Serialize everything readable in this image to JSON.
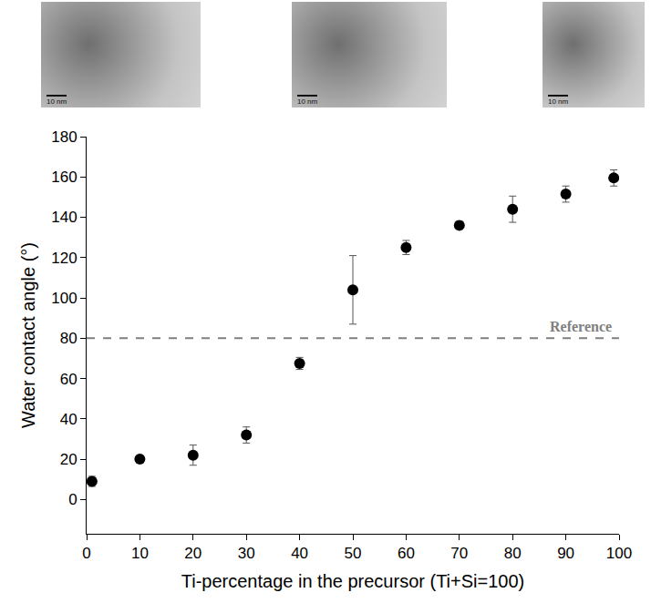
{
  "images": [
    {
      "scale_bar": "10 nm"
    },
    {
      "scale_bar": "10 nm"
    },
    {
      "scale_bar": "10 nm"
    }
  ],
  "chart_data": {
    "type": "scatter",
    "x_label": "Ti-percentage in the precursor (Ti+Si=100)",
    "y_label": "Water contact angle (°)",
    "x": [
      1,
      10,
      20,
      30,
      40,
      50,
      60,
      70,
      80,
      90,
      99
    ],
    "values": [
      9,
      20,
      22,
      32,
      67.5,
      104,
      125,
      136,
      144,
      151.5,
      159.5
    ],
    "errors": [
      2.5,
      1.5,
      5,
      4,
      3,
      17,
      3.5,
      2,
      6.5,
      4,
      4
    ],
    "color": "#000000",
    "marker": "circle",
    "reference": {
      "value": 80,
      "label": "Reference",
      "color": "#808080",
      "line_style": "dashed"
    },
    "xlim": [
      0,
      100
    ],
    "xticks": [
      0,
      10,
      20,
      30,
      40,
      50,
      60,
      70,
      80,
      90,
      100
    ],
    "ylim": [
      -17,
      180
    ],
    "yticks": [
      0,
      20,
      40,
      60,
      80,
      100,
      120,
      140,
      160,
      180
    ],
    "grid": false
  }
}
